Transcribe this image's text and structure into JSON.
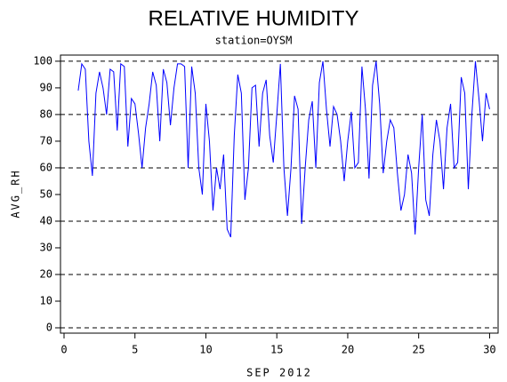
{
  "chart_data": {
    "type": "line",
    "title": "RELATIVE HUMIDITY",
    "subtitle": "station=OYSM",
    "x_label": "SEP 2012",
    "y_label": "AVG_RH",
    "color": "#0000ff",
    "xlim": [
      -0.25,
      30.6
    ],
    "ylim": [
      -2,
      102.3
    ],
    "xticks": [
      0,
      5,
      10,
      15,
      20,
      25,
      30
    ],
    "yticks": [
      0,
      10,
      20,
      30,
      40,
      50,
      60,
      70,
      80,
      90,
      100
    ],
    "reference_lines": [
      0,
      20,
      40,
      60,
      80,
      100
    ],
    "x": [
      1,
      1.25,
      1.5,
      1.75,
      2,
      2.25,
      2.5,
      2.75,
      3,
      3.25,
      3.5,
      3.75,
      4,
      4.25,
      4.5,
      4.75,
      5,
      5.25,
      5.5,
      5.75,
      6,
      6.25,
      6.5,
      6.75,
      7,
      7.25,
      7.5,
      7.75,
      8,
      8.25,
      8.5,
      8.75,
      9,
      9.25,
      9.5,
      9.75,
      10,
      10.25,
      10.5,
      10.75,
      11,
      11.25,
      11.5,
      11.75,
      12,
      12.25,
      12.5,
      12.75,
      13,
      13.25,
      13.5,
      13.75,
      14,
      14.25,
      14.5,
      14.75,
      15,
      15.25,
      15.5,
      15.75,
      16,
      16.25,
      16.5,
      16.75,
      17,
      17.25,
      17.5,
      17.75,
      18,
      18.25,
      18.5,
      18.75,
      19,
      19.25,
      19.5,
      19.75,
      20,
      20.25,
      20.5,
      20.75,
      21,
      21.25,
      21.5,
      21.75,
      22,
      22.25,
      22.5,
      22.75,
      23,
      23.25,
      23.5,
      23.75,
      24,
      24.25,
      24.5,
      24.75,
      25,
      25.25,
      25.5,
      25.75,
      26,
      26.25,
      26.5,
      26.75,
      27,
      27.25,
      27.5,
      27.75,
      28,
      28.25,
      28.5,
      28.75,
      29,
      29.25,
      29.5,
      29.75,
      30
    ],
    "values": [
      89,
      99,
      97,
      70,
      57,
      88,
      96,
      90,
      80,
      97,
      96,
      74,
      99,
      98,
      68,
      86,
      84,
      73,
      60,
      75,
      84,
      96,
      91,
      70,
      97,
      92,
      76,
      90,
      99,
      99,
      98,
      60,
      98,
      88,
      60,
      50,
      84,
      70,
      44,
      60,
      52,
      65,
      37,
      34,
      72,
      95,
      88,
      48,
      60,
      90,
      91,
      68,
      88,
      93,
      72,
      62,
      80,
      99,
      60,
      42,
      60,
      87,
      82,
      39,
      60,
      78,
      85,
      60,
      92,
      100,
      82,
      68,
      83,
      80,
      70,
      55,
      70,
      81,
      60,
      62,
      98,
      82,
      56,
      91,
      100,
      84,
      58,
      70,
      78,
      75,
      58,
      44,
      50,
      65,
      58,
      35,
      60,
      80,
      48,
      42,
      65,
      78,
      70,
      52,
      75,
      84,
      60,
      62,
      94,
      88,
      52,
      80,
      100,
      86,
      70,
      88,
      82
    ]
  }
}
